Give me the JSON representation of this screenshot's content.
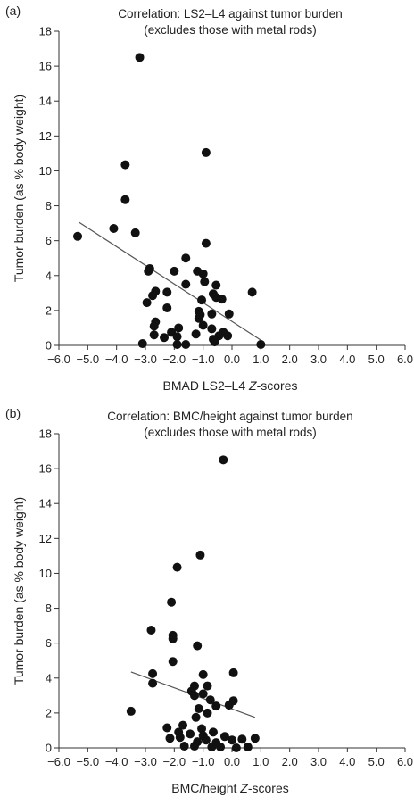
{
  "chart_data": [
    {
      "type": "scatter",
      "panel_label": "(a)",
      "title": "Correlation: LS2–L4 against tumor burden",
      "subtitle": "(excludes those with metal rods)",
      "xlabel_prefix": "BMAD LS2–L4 ",
      "xlabel_italic": "Z",
      "xlabel_suffix": "-scores",
      "ylabel": "Tumor burden (as % body weight)",
      "xlim": [
        -6.0,
        6.0
      ],
      "ylim": [
        0,
        18
      ],
      "x_ticks": [
        "−6.0",
        "−5.0",
        "−4.0",
        "−3.0",
        "−2.0",
        "−1.0",
        "0.0",
        "1.0",
        "2.0",
        "3.0",
        "4.0",
        "5.0",
        "6.0"
      ],
      "y_ticks": [
        "0",
        "2",
        "4",
        "6",
        "8",
        "10",
        "12",
        "14",
        "16",
        "18"
      ],
      "grid": false,
      "trendline": [
        [
          -5.3,
          7.05
        ],
        [
          1.0,
          0.3
        ]
      ],
      "points": [
        [
          -3.2,
          16.5
        ],
        [
          -0.9,
          11.05
        ],
        [
          -3.7,
          10.35
        ],
        [
          -3.7,
          8.35
        ],
        [
          -4.1,
          6.7
        ],
        [
          -3.35,
          6.45
        ],
        [
          -5.35,
          6.25
        ],
        [
          -0.9,
          5.85
        ],
        [
          -1.6,
          5.0
        ],
        [
          -2.85,
          4.4
        ],
        [
          -2.9,
          4.25
        ],
        [
          -1.2,
          4.25
        ],
        [
          -2.0,
          4.25
        ],
        [
          -1.0,
          4.1
        ],
        [
          -2.95,
          2.45
        ],
        [
          -2.65,
          3.1
        ],
        [
          -2.25,
          3.05
        ],
        [
          -0.55,
          3.45
        ],
        [
          -0.95,
          3.65
        ],
        [
          -1.6,
          3.5
        ],
        [
          -0.65,
          2.95
        ],
        [
          -0.55,
          2.75
        ],
        [
          -0.35,
          2.65
        ],
        [
          -1.05,
          2.6
        ],
        [
          -2.25,
          2.15
        ],
        [
          -1.15,
          1.95
        ],
        [
          -2.75,
          2.85
        ],
        [
          -0.7,
          1.8
        ],
        [
          -1.1,
          1.75
        ],
        [
          -1.15,
          1.55
        ],
        [
          -0.1,
          1.8
        ],
        [
          -1.85,
          1.0
        ],
        [
          -2.65,
          1.35
        ],
        [
          -2.7,
          1.1
        ],
        [
          -1.0,
          1.15
        ],
        [
          -0.7,
          0.95
        ],
        [
          -0.45,
          0.55
        ],
        [
          -0.3,
          0.75
        ],
        [
          -2.1,
          0.75
        ],
        [
          -1.25,
          0.65
        ],
        [
          -0.15,
          0.55
        ],
        [
          -0.65,
          0.35
        ],
        [
          -1.9,
          0.5
        ],
        [
          -2.7,
          0.6
        ],
        [
          -2.35,
          0.45
        ],
        [
          -3.1,
          0.1
        ],
        [
          -1.9,
          0.05
        ],
        [
          -1.6,
          0.05
        ],
        [
          1.0,
          0.05
        ],
        [
          0.7,
          3.05
        ],
        [
          -0.6,
          0.2
        ]
      ]
    },
    {
      "type": "scatter",
      "panel_label": "(b)",
      "title": "Correlation: BMC/height against tumor burden",
      "subtitle": "(excludes those with metal rods)",
      "xlabel_prefix": "BMC/height ",
      "xlabel_italic": "Z",
      "xlabel_suffix": "-scores",
      "ylabel": "Tumor burden (as % body weight)",
      "xlim": [
        -6.0,
        6.0
      ],
      "ylim": [
        0,
        18
      ],
      "x_ticks": [
        "−6.0",
        "−5.0",
        "−4.0",
        "−3.0",
        "−2.0",
        "−1.0",
        "0.0",
        "1.0",
        "2.0",
        "3.0",
        "4.0",
        "5.0",
        "6.0"
      ],
      "y_ticks": [
        "0",
        "2",
        "4",
        "6",
        "8",
        "10",
        "12",
        "14",
        "16",
        "18"
      ],
      "grid": false,
      "trendline": [
        [
          -3.5,
          4.35
        ],
        [
          0.8,
          1.75
        ]
      ],
      "points": [
        [
          -0.3,
          16.5
        ],
        [
          -1.1,
          11.05
        ],
        [
          -1.9,
          10.35
        ],
        [
          -2.1,
          8.35
        ],
        [
          -2.8,
          6.75
        ],
        [
          -2.05,
          6.45
        ],
        [
          -2.05,
          6.25
        ],
        [
          -1.2,
          5.85
        ],
        [
          -2.05,
          4.95
        ],
        [
          -2.75,
          4.25
        ],
        [
          0.05,
          4.3
        ],
        [
          -2.75,
          3.7
        ],
        [
          -1.0,
          4.2
        ],
        [
          -1.3,
          3.55
        ],
        [
          -0.85,
          3.55
        ],
        [
          -1.4,
          3.25
        ],
        [
          -1.0,
          3.1
        ],
        [
          -0.75,
          2.75
        ],
        [
          -1.3,
          3.0
        ],
        [
          -0.1,
          2.45
        ],
        [
          -0.55,
          2.4
        ],
        [
          -1.15,
          2.25
        ],
        [
          0.05,
          2.7
        ],
        [
          -3.5,
          2.1
        ],
        [
          -0.85,
          2.0
        ],
        [
          -1.25,
          1.75
        ],
        [
          -1.7,
          1.3
        ],
        [
          -2.25,
          1.15
        ],
        [
          -1.05,
          1.1
        ],
        [
          -0.65,
          0.9
        ],
        [
          -1.85,
          0.9
        ],
        [
          -1.45,
          0.8
        ],
        [
          -0.25,
          0.65
        ],
        [
          -2.15,
          0.55
        ],
        [
          -1.8,
          0.6
        ],
        [
          -1.0,
          0.7
        ],
        [
          -0.9,
          0.45
        ],
        [
          -1.2,
          0.35
        ],
        [
          -0.55,
          0.3
        ],
        [
          0.0,
          0.45
        ],
        [
          0.35,
          0.5
        ],
        [
          0.8,
          0.55
        ],
        [
          -1.3,
          0.1
        ],
        [
          -1.65,
          0.1
        ],
        [
          -0.4,
          0.05
        ],
        [
          0.15,
          0.0
        ],
        [
          0.55,
          0.05
        ],
        [
          -0.7,
          0.05
        ]
      ]
    }
  ]
}
